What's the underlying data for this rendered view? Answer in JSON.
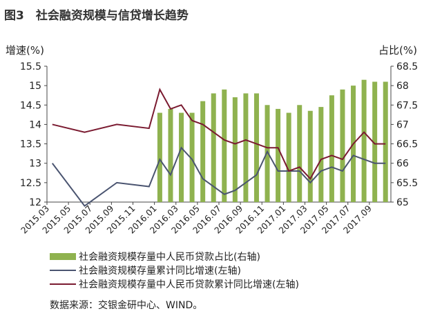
{
  "chart_data": {
    "type": "bar+line",
    "title": "图3　社会融资规模与信贷增长趋势",
    "ylabel_left": "增速(%)",
    "ylabel_right": "占比(%)",
    "ylim_left": [
      12,
      15.5
    ],
    "ylim_right": [
      65,
      68.5
    ],
    "yticks_left": [
      "12",
      "12.5",
      "13",
      "13.5",
      "14",
      "14.5",
      "15",
      "15.5"
    ],
    "yticks_right": [
      "65",
      "65.5",
      "66",
      "66.5",
      "67",
      "67.5",
      "68",
      "68.5"
    ],
    "categories": [
      "2015.03",
      "2015.04",
      "2015.05",
      "2015.06",
      "2015.07",
      "2015.08",
      "2015.09",
      "2015.10",
      "2015.11",
      "2015.12",
      "2016.01",
      "2016.02",
      "2016.03",
      "2016.04",
      "2016.05",
      "2016.06",
      "2016.07",
      "2016.08",
      "2016.09",
      "2016.10",
      "2016.11",
      "2016.12",
      "2017.01",
      "2017.02",
      "2017.03",
      "2017.04",
      "2017.05",
      "2017.06",
      "2017.07",
      "2017.08",
      "2017.09",
      "2017.10"
    ],
    "xtick_labels": [
      "2015.03",
      "2015.05",
      "2015.07",
      "2015.09",
      "2015.11",
      "2016.01",
      "2016.03",
      "2016.05",
      "2016.07",
      "2016.09",
      "2016.11",
      "2017.01",
      "2017.03",
      "2017.05",
      "2017.07",
      "2017.09"
    ],
    "series": [
      {
        "name": "社会融资规模存量中人民币贷款占比(右轴)",
        "type": "bar",
        "axis": "right",
        "color": "#8fb24f",
        "values": [
          null,
          null,
          null,
          null,
          null,
          null,
          null,
          null,
          null,
          null,
          67.3,
          67.4,
          67.3,
          67.3,
          67.6,
          67.8,
          67.9,
          67.7,
          67.8,
          67.8,
          67.5,
          67.4,
          67.3,
          67.5,
          67.35,
          67.45,
          67.75,
          67.9,
          68.0,
          68.15,
          68.1,
          68.1
        ]
      },
      {
        "name": "社会融资规模存量累计同比增速(左轴)",
        "type": "line",
        "axis": "left",
        "color": "#4a5470",
        "values": [
          13.0,
          null,
          null,
          11.9,
          null,
          null,
          12.5,
          null,
          null,
          12.4,
          13.1,
          12.7,
          13.4,
          13.1,
          12.6,
          12.4,
          12.2,
          12.3,
          12.5,
          12.7,
          13.3,
          12.8,
          12.8,
          12.8,
          12.5,
          12.8,
          12.9,
          12.8,
          13.2,
          13.1,
          13.0,
          13.0
        ]
      },
      {
        "name": "社会融资规模存量中人民币贷款累计同比增速(左轴)",
        "type": "line",
        "axis": "left",
        "color": "#7a1a30",
        "values": [
          14.0,
          null,
          null,
          13.8,
          null,
          null,
          14.0,
          null,
          null,
          13.9,
          14.9,
          14.4,
          14.5,
          14.1,
          14.0,
          13.8,
          13.6,
          13.5,
          13.6,
          13.5,
          13.4,
          13.4,
          12.8,
          12.9,
          12.6,
          13.1,
          13.2,
          13.1,
          13.5,
          13.8,
          13.5,
          13.5
        ]
      }
    ]
  },
  "source": "数据来源：交银金研中心、WIND。"
}
